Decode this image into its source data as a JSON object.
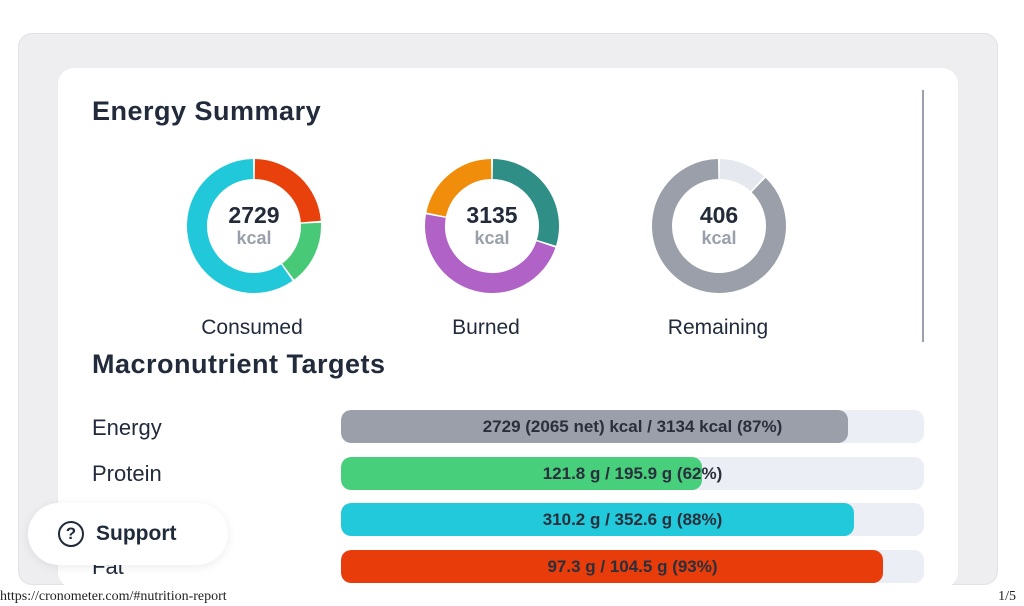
{
  "energy_summary": {
    "title": "Energy Summary",
    "donuts": [
      {
        "value": "2729",
        "unit": "kcal",
        "label": "Consumed",
        "segments": [
          {
            "fraction": 0.24,
            "color": "#e8410c"
          },
          {
            "fraction": 0.16,
            "color": "#47c977"
          },
          {
            "fraction": 0.6,
            "color": "#20c8d9"
          }
        ]
      },
      {
        "value": "3135",
        "unit": "kcal",
        "label": "Burned",
        "segments": [
          {
            "fraction": 0.3,
            "color": "#2f8f87"
          },
          {
            "fraction": 0.48,
            "color": "#b062c7"
          },
          {
            "fraction": 0.22,
            "color": "#f08e0c"
          }
        ]
      },
      {
        "value": "406",
        "unit": "kcal",
        "label": "Remaining",
        "segments": [
          {
            "fraction": 0.12,
            "color": "#e6e8ef"
          },
          {
            "fraction": 0.88,
            "color": "#9b9fa9"
          }
        ]
      }
    ]
  },
  "macronutrient_targets": {
    "title": "Macronutrient Targets",
    "rows": [
      {
        "label": "Energy",
        "bar_text": "2729 (2065 net) kcal / 3134 kcal (87%)",
        "fill_fraction": 0.87,
        "color": "#9b9fa9"
      },
      {
        "label": "Protein",
        "bar_text": "121.8 g / 195.9 g (62%)",
        "fill_fraction": 0.62,
        "color": "#47cf7c"
      },
      {
        "label": "",
        "bar_text": "310.2 g / 352.6 g (88%)",
        "fill_fraction": 0.88,
        "color": "#21c9da"
      },
      {
        "label": "Fat",
        "bar_text": "97.3 g / 104.5 g (93%)",
        "fill_fraction": 0.93,
        "color": "#e83c0b"
      }
    ]
  },
  "support": {
    "label": "Support",
    "icon": "question-circle-icon",
    "glyph": "?"
  },
  "footer": {
    "url": "https://cronometer.com/#nutrition-report",
    "page": "1/5"
  }
}
